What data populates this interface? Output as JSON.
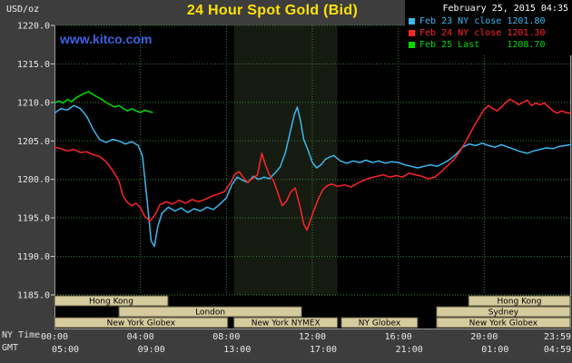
{
  "header": {
    "unit": "USD/oz",
    "title": "24 Hour Spot Gold (Bid)",
    "datetime": "February 25, 2015 04:35"
  },
  "watermark": "www.kitco.com",
  "legend": {
    "items": [
      {
        "id": "feb23",
        "label": "Feb 23 NY close 1201.80",
        "color": "#3cb8f0"
      },
      {
        "id": "feb24",
        "label": "Feb 24 NY close 1201.30",
        "color": "#ff2525"
      },
      {
        "id": "feb25",
        "label": "Feb 25 Last     1208.70",
        "color": "#00dd00"
      }
    ]
  },
  "axes": {
    "ny_label": "NY Time",
    "gmt_label": "GMT",
    "ny_ticks": [
      "00:00",
      "04:00",
      "08:00",
      "12:00",
      "16:00",
      "20:00",
      "23:59"
    ],
    "gmt_ticks": [
      "05:00",
      "09:00",
      "13:00",
      "17:00",
      "21:00",
      "01:00",
      "04:59"
    ],
    "y_ticks": [
      "1220.0",
      "1215.0",
      "1210.0",
      "1205.0",
      "1200.0",
      "1195.0",
      "1190.0",
      "1185.0"
    ]
  },
  "sessions": [
    {
      "row": 0,
      "label": "Hong Kong",
      "start": 0,
      "end": 5.28
    },
    {
      "row": 0,
      "label": "Hong Kong",
      "start": 19.27,
      "end": 24
    },
    {
      "row": 1,
      "label": "London",
      "start": 3.0,
      "end": 11.5
    },
    {
      "row": 1,
      "label": "Sydney",
      "start": 17.78,
      "end": 24
    },
    {
      "row": 2,
      "label": "New York Globex",
      "start": 0,
      "end": 8.06
    },
    {
      "row": 2,
      "label": "New York NYMEX",
      "start": 8.35,
      "end": 13.17
    },
    {
      "row": 2,
      "label": "NY Globex",
      "start": 13.35,
      "end": 16.9
    },
    {
      "row": 2,
      "label": "New York Globex",
      "start": 17.78,
      "end": 24
    }
  ],
  "chart_data": {
    "type": "line",
    "title": "24 Hour Spot Gold (Bid)",
    "ylabel": "USD/oz",
    "ylim": [
      1185,
      1220
    ],
    "xlim": [
      0,
      24
    ],
    "x_unit": "hours-ny-time",
    "grid": true,
    "legend_position": "top-right",
    "colors": {
      "plot_bg": "#000000",
      "grid": "#3f7d3f",
      "nymex_band": "#151b10"
    },
    "nymex_band_hours": [
      8.35,
      13.17
    ],
    "series": [
      {
        "id": "price-line-feb23",
        "name": "Feb 23",
        "summary": "NY close 1201.80",
        "color": "#3cb8f0",
        "points": [
          [
            0,
            1208.6
          ],
          [
            0.3,
            1209.2
          ],
          [
            0.6,
            1209
          ],
          [
            0.9,
            1209.6
          ],
          [
            1.2,
            1209.2
          ],
          [
            1.5,
            1208.2
          ],
          [
            1.8,
            1206.5
          ],
          [
            2.1,
            1205.2
          ],
          [
            2.4,
            1204.8
          ],
          [
            2.7,
            1205.2
          ],
          [
            3,
            1205
          ],
          [
            3.3,
            1204.6
          ],
          [
            3.6,
            1204.9
          ],
          [
            3.9,
            1204.4
          ],
          [
            4.1,
            1203
          ],
          [
            4.3,
            1197.5
          ],
          [
            4.5,
            1192
          ],
          [
            4.65,
            1191.3
          ],
          [
            4.8,
            1193.8
          ],
          [
            5,
            1195.6
          ],
          [
            5.3,
            1196.4
          ],
          [
            5.6,
            1195.9
          ],
          [
            5.9,
            1196.3
          ],
          [
            6.2,
            1195.7
          ],
          [
            6.5,
            1196.2
          ],
          [
            6.8,
            1195.9
          ],
          [
            7.1,
            1196.4
          ],
          [
            7.4,
            1196.1
          ],
          [
            7.7,
            1196.8
          ],
          [
            8,
            1197.6
          ],
          [
            8.25,
            1199.3
          ],
          [
            8.5,
            1200.3
          ],
          [
            8.75,
            1199.9
          ],
          [
            9,
            1199.6
          ],
          [
            9.25,
            1200.4
          ],
          [
            9.5,
            1200
          ],
          [
            9.75,
            1200.3
          ],
          [
            10,
            1200.1
          ],
          [
            10.25,
            1200.8
          ],
          [
            10.5,
            1201.6
          ],
          [
            10.75,
            1203.5
          ],
          [
            11,
            1206.5
          ],
          [
            11.15,
            1208.3
          ],
          [
            11.3,
            1209.4
          ],
          [
            11.45,
            1207.6
          ],
          [
            11.6,
            1205.2
          ],
          [
            11.8,
            1203.8
          ],
          [
            12,
            1202.2
          ],
          [
            12.2,
            1201.5
          ],
          [
            12.4,
            1201.9
          ],
          [
            12.6,
            1202.6
          ],
          [
            12.8,
            1202.9
          ],
          [
            13,
            1203.1
          ],
          [
            13.3,
            1202.4
          ],
          [
            13.6,
            1202.1
          ],
          [
            13.9,
            1202.4
          ],
          [
            14.2,
            1202.2
          ],
          [
            14.5,
            1202.5
          ],
          [
            14.8,
            1202.2
          ],
          [
            15.1,
            1202.4
          ],
          [
            15.4,
            1202.1
          ],
          [
            15.7,
            1202.3
          ],
          [
            16,
            1202.2
          ],
          [
            16.3,
            1201.9
          ],
          [
            16.6,
            1201.7
          ],
          [
            16.9,
            1201.5
          ],
          [
            17.2,
            1201.7
          ],
          [
            17.5,
            1201.9
          ],
          [
            17.8,
            1201.7
          ],
          [
            18.1,
            1202.1
          ],
          [
            18.4,
            1202.6
          ],
          [
            18.7,
            1203.3
          ],
          [
            19,
            1204.2
          ],
          [
            19.3,
            1204.6
          ],
          [
            19.6,
            1204.4
          ],
          [
            19.9,
            1204.7
          ],
          [
            20.2,
            1204.4
          ],
          [
            20.5,
            1204.2
          ],
          [
            20.8,
            1204.5
          ],
          [
            21.1,
            1204.2
          ],
          [
            21.4,
            1203.9
          ],
          [
            21.7,
            1203.6
          ],
          [
            22,
            1203.4
          ],
          [
            22.3,
            1203.7
          ],
          [
            22.6,
            1203.9
          ],
          [
            22.9,
            1204.1
          ],
          [
            23.2,
            1204
          ],
          [
            23.5,
            1204.3
          ],
          [
            24,
            1204.5
          ]
        ]
      },
      {
        "id": "price-line-feb24",
        "name": "Feb 24",
        "summary": "NY close 1201.30",
        "color": "#ff2525",
        "points": [
          [
            0,
            1204.2
          ],
          [
            0.3,
            1204
          ],
          [
            0.6,
            1203.7
          ],
          [
            0.9,
            1203.9
          ],
          [
            1.2,
            1203.5
          ],
          [
            1.5,
            1203.6
          ],
          [
            1.8,
            1203.2
          ],
          [
            2.1,
            1203
          ],
          [
            2.4,
            1202.3
          ],
          [
            2.7,
            1201.2
          ],
          [
            3,
            1199.8
          ],
          [
            3.2,
            1197.8
          ],
          [
            3.4,
            1197
          ],
          [
            3.6,
            1196.6
          ],
          [
            3.8,
            1196.9
          ],
          [
            4,
            1196.3
          ],
          [
            4.2,
            1195.2
          ],
          [
            4.45,
            1194.6
          ],
          [
            4.7,
            1195.5
          ],
          [
            4.9,
            1196.7
          ],
          [
            5.2,
            1197.1
          ],
          [
            5.5,
            1196.8
          ],
          [
            5.8,
            1197.3
          ],
          [
            6.1,
            1196.9
          ],
          [
            6.4,
            1197.4
          ],
          [
            6.7,
            1197.1
          ],
          [
            7,
            1197.4
          ],
          [
            7.3,
            1197.8
          ],
          [
            7.6,
            1198.1
          ],
          [
            7.9,
            1198.4
          ],
          [
            8.2,
            1199.6
          ],
          [
            8.4,
            1200.7
          ],
          [
            8.6,
            1201
          ],
          [
            8.8,
            1200.2
          ],
          [
            9,
            1199.6
          ],
          [
            9.2,
            1200.1
          ],
          [
            9.45,
            1200.6
          ],
          [
            9.65,
            1203.4
          ],
          [
            9.8,
            1202
          ],
          [
            10,
            1200.6
          ],
          [
            10.2,
            1199.8
          ],
          [
            10.4,
            1198.2
          ],
          [
            10.6,
            1196.6
          ],
          [
            10.8,
            1197.2
          ],
          [
            11,
            1198.4
          ],
          [
            11.2,
            1198.9
          ],
          [
            11.4,
            1196.8
          ],
          [
            11.6,
            1194.2
          ],
          [
            11.75,
            1193.4
          ],
          [
            11.9,
            1194.6
          ],
          [
            12.1,
            1196.2
          ],
          [
            12.3,
            1197.6
          ],
          [
            12.5,
            1198.7
          ],
          [
            12.7,
            1199.2
          ],
          [
            12.9,
            1199.4
          ],
          [
            13.2,
            1199.1
          ],
          [
            13.5,
            1199.3
          ],
          [
            13.8,
            1199
          ],
          [
            14.1,
            1199.5
          ],
          [
            14.4,
            1199.9
          ],
          [
            14.7,
            1200.2
          ],
          [
            15,
            1200.4
          ],
          [
            15.3,
            1200.6
          ],
          [
            15.6,
            1200.3
          ],
          [
            15.9,
            1200.5
          ],
          [
            16.2,
            1200.3
          ],
          [
            16.5,
            1200.8
          ],
          [
            16.8,
            1200.6
          ],
          [
            17.1,
            1200.4
          ],
          [
            17.4,
            1200.1
          ],
          [
            17.7,
            1200.3
          ],
          [
            18,
            1201
          ],
          [
            18.3,
            1201.8
          ],
          [
            18.6,
            1202.6
          ],
          [
            18.9,
            1203.8
          ],
          [
            19.2,
            1205.2
          ],
          [
            19.5,
            1206.8
          ],
          [
            19.8,
            1208.2
          ],
          [
            20,
            1209.1
          ],
          [
            20.2,
            1209.6
          ],
          [
            20.4,
            1209.2
          ],
          [
            20.6,
            1208.9
          ],
          [
            20.8,
            1209.4
          ],
          [
            21,
            1210
          ],
          [
            21.2,
            1210.4
          ],
          [
            21.4,
            1210.1
          ],
          [
            21.6,
            1209.7
          ],
          [
            21.8,
            1210
          ],
          [
            22,
            1210.3
          ],
          [
            22.2,
            1209.6
          ],
          [
            22.4,
            1209.9
          ],
          [
            22.6,
            1209.7
          ],
          [
            22.8,
            1209.9
          ],
          [
            23,
            1209.4
          ],
          [
            23.2,
            1208.9
          ],
          [
            23.4,
            1208.6
          ],
          [
            23.6,
            1208.9
          ],
          [
            23.8,
            1208.7
          ],
          [
            24,
            1208.6
          ]
        ]
      },
      {
        "id": "price-line-feb25",
        "name": "Feb 25",
        "summary": "Last 1208.70",
        "color": "#00dd00",
        "points": [
          [
            0,
            1209.9
          ],
          [
            0.2,
            1210.2
          ],
          [
            0.4,
            1209.9
          ],
          [
            0.6,
            1210.4
          ],
          [
            0.8,
            1210.1
          ],
          [
            1,
            1210.6
          ],
          [
            1.2,
            1210.9
          ],
          [
            1.4,
            1211.2
          ],
          [
            1.6,
            1211.4
          ],
          [
            1.8,
            1211
          ],
          [
            2,
            1210.7
          ],
          [
            2.2,
            1210.4
          ],
          [
            2.4,
            1210
          ],
          [
            2.6,
            1209.7
          ],
          [
            2.8,
            1209.4
          ],
          [
            3,
            1209.6
          ],
          [
            3.2,
            1209.2
          ],
          [
            3.4,
            1208.9
          ],
          [
            3.6,
            1209.2
          ],
          [
            3.8,
            1208.9
          ],
          [
            4,
            1208.7
          ],
          [
            4.2,
            1209
          ],
          [
            4.4,
            1208.8
          ],
          [
            4.58,
            1208.7
          ]
        ]
      }
    ]
  }
}
